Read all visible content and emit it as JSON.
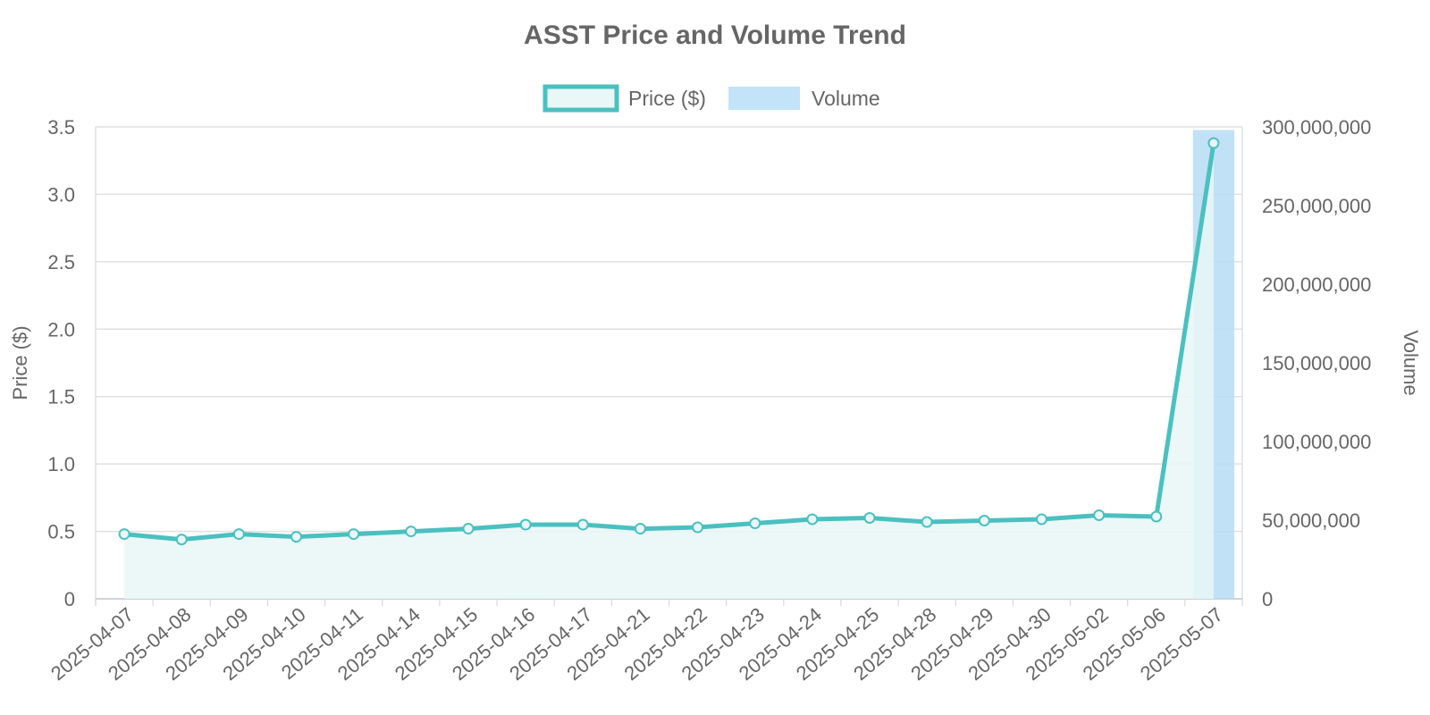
{
  "chart_data": {
    "type": "bar+line",
    "title": "ASST Price and Volume Trend",
    "categories": [
      "2025-04-07",
      "2025-04-08",
      "2025-04-09",
      "2025-04-10",
      "2025-04-11",
      "2025-04-14",
      "2025-04-15",
      "2025-04-16",
      "2025-04-17",
      "2025-04-21",
      "2025-04-22",
      "2025-04-23",
      "2025-04-24",
      "2025-04-25",
      "2025-04-28",
      "2025-04-29",
      "2025-04-30",
      "2025-05-02",
      "2025-05-06",
      "2025-05-07"
    ],
    "series": [
      {
        "name": "Price ($)",
        "type": "line",
        "axis": "left",
        "color": "#4bc0c0",
        "fill": "#e9f7f7",
        "values": [
          0.48,
          0.44,
          0.48,
          0.46,
          0.48,
          0.5,
          0.52,
          0.55,
          0.55,
          0.52,
          0.53,
          0.56,
          0.59,
          0.6,
          0.57,
          0.58,
          0.59,
          0.62,
          0.61,
          3.38
        ]
      },
      {
        "name": "Volume",
        "type": "bar",
        "axis": "right",
        "color": "#b6dcf5",
        "values": [
          500000,
          200000,
          300000,
          250000,
          200000,
          200000,
          300000,
          800000,
          400000,
          200000,
          200000,
          200000,
          200000,
          200000,
          200000,
          200000,
          200000,
          400000,
          300000,
          298000000
        ]
      }
    ],
    "y_left": {
      "label": "Price ($)",
      "range": [
        0,
        3.5
      ],
      "ticks": [
        0,
        0.5,
        1.0,
        1.5,
        2.0,
        2.5,
        3.0,
        3.5
      ],
      "tick_labels": [
        "0",
        "0.5",
        "1.0",
        "1.5",
        "2.0",
        "2.5",
        "3.0",
        "3.5"
      ]
    },
    "y_right": {
      "label": "Volume",
      "range": [
        0,
        300000000
      ],
      "ticks": [
        0,
        50000000,
        100000000,
        150000000,
        200000000,
        250000000,
        300000000
      ],
      "tick_labels": [
        "0",
        "50,000,000",
        "100,000,000",
        "150,000,000",
        "200,000,000",
        "250,000,000",
        "300,000,000"
      ]
    },
    "legend": {
      "position": "top",
      "items": [
        "Price ($)",
        "Volume"
      ]
    },
    "grid": true
  }
}
